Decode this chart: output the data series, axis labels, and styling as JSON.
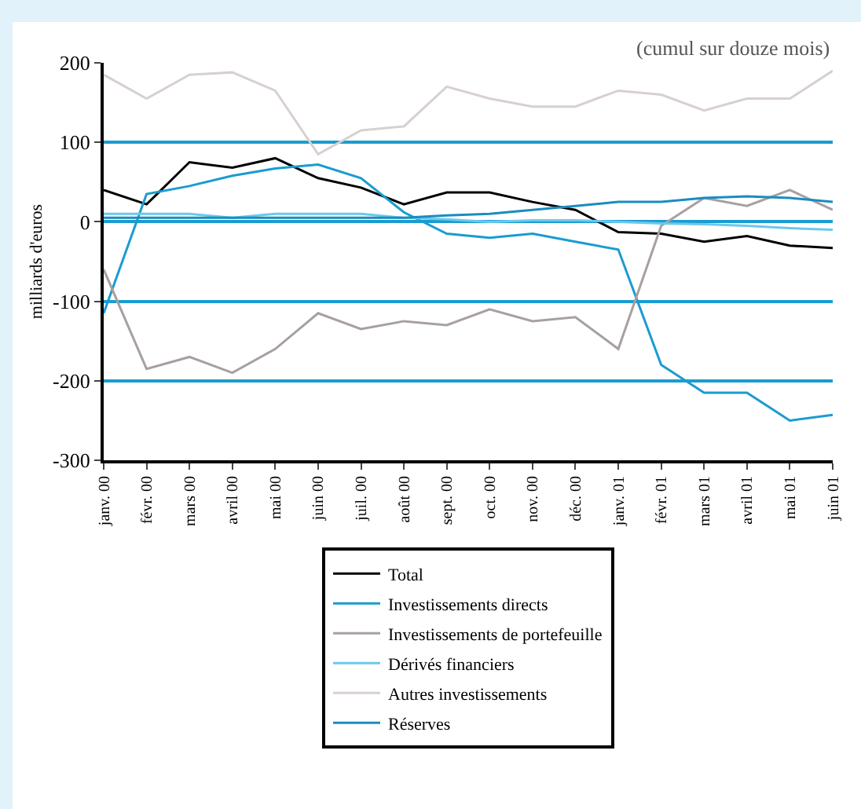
{
  "chart_data": {
    "type": "line",
    "ylabel": "milliards d'euros",
    "annotations": [
      "(cumul sur douze mois)"
    ],
    "categories": [
      "janv. 00",
      "févr. 00",
      "mars 00",
      "avril 00",
      "mai 00",
      "juin 00",
      "juil. 00",
      "août 00",
      "sept. 00",
      "oct. 00",
      "nov. 00",
      "déc. 00",
      "janv. 01",
      "févr. 01",
      "mars 01",
      "avril 01",
      "mai 01",
      "juin 01"
    ],
    "series": [
      {
        "name": "Total",
        "color": "#000000",
        "values": [
          40,
          22,
          75,
          68,
          80,
          55,
          43,
          22,
          37,
          37,
          25,
          15,
          -13,
          -15,
          -25,
          -18,
          -30,
          -33
        ]
      },
      {
        "name": "Investissements directs",
        "color": "#1a9cd0",
        "values": [
          -115,
          35,
          45,
          58,
          67,
          72,
          55,
          12,
          -15,
          -20,
          -15,
          -25,
          -35,
          -180,
          -215,
          -215,
          -250,
          -243
        ]
      },
      {
        "name": "Investissements de portefeuille",
        "color": "#a8a0a0",
        "values": [
          -60,
          -185,
          -170,
          -190,
          -160,
          -115,
          -135,
          -125,
          -130,
          -110,
          -125,
          -120,
          -160,
          -5,
          30,
          20,
          40,
          15
        ]
      },
      {
        "name": "Dérivés financiers",
        "color": "#6cc8ec",
        "values": [
          10,
          10,
          10,
          5,
          10,
          10,
          10,
          5,
          3,
          0,
          2,
          2,
          0,
          -2,
          -3,
          -5,
          -8,
          -10
        ]
      },
      {
        "name": "Autres investissements",
        "color": "#d8d0d0",
        "values": [
          185,
          155,
          185,
          188,
          165,
          85,
          115,
          120,
          170,
          155,
          145,
          145,
          165,
          160,
          140,
          155,
          155,
          190
        ]
      },
      {
        "name": "Réserves",
        "color": "#1a8cc0",
        "values": [
          5,
          5,
          5,
          5,
          5,
          5,
          5,
          5,
          8,
          10,
          15,
          20,
          25,
          25,
          30,
          32,
          30,
          25
        ]
      }
    ],
    "ylim": [
      -300,
      200
    ],
    "yticks": [
      -300,
      -200,
      -100,
      0,
      100,
      200
    ],
    "grid": "y",
    "legend": "bottom",
    "line_style": "solid",
    "marker": "none"
  }
}
